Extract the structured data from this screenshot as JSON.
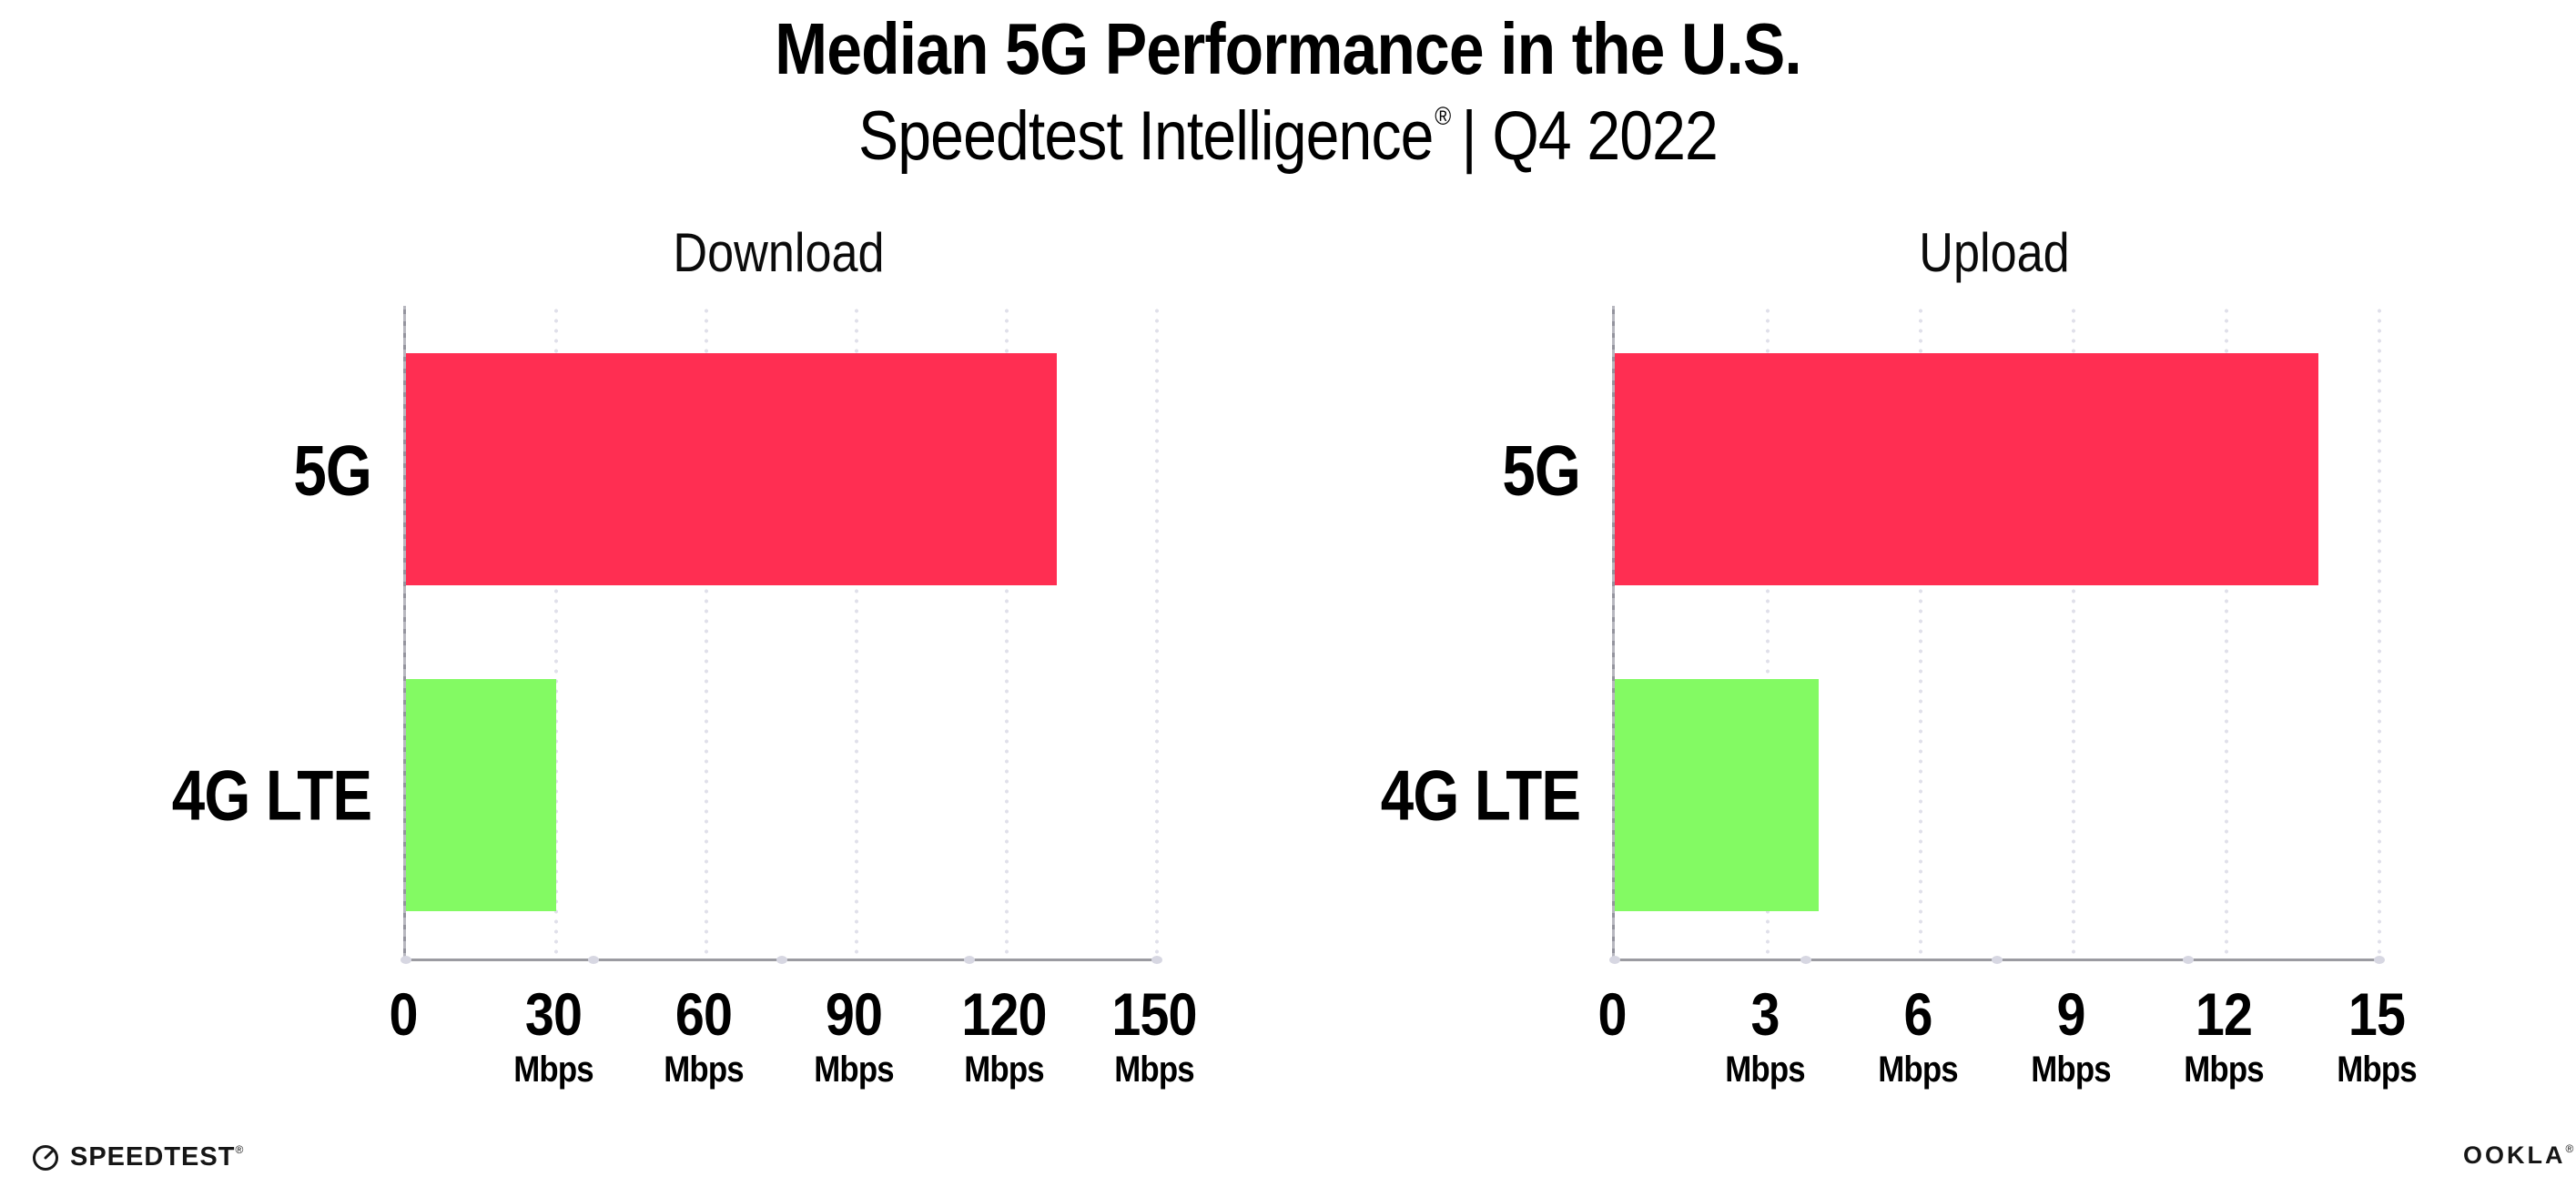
{
  "header": {
    "title": "Median 5G Performance in the U.S.",
    "subtitle_brand": "Speedtest Intelligence",
    "subtitle_reg": "®",
    "subtitle_rest": "| Q4 2022"
  },
  "chart_data": [
    {
      "type": "bar",
      "orientation": "horizontal",
      "title": "Download",
      "categories": [
        "5G",
        "4G LTE"
      ],
      "values": [
        130,
        30
      ],
      "unit": "Mbps",
      "xlim": [
        0,
        150
      ],
      "ticks": [
        0,
        30,
        60,
        90,
        120,
        150
      ],
      "bar_colors": [
        "#ff2e52",
        "#83fa63"
      ],
      "grid": "dotted-vertical-lines",
      "legend": "none"
    },
    {
      "type": "bar",
      "orientation": "horizontal",
      "title": "Upload",
      "categories": [
        "5G",
        "4G LTE"
      ],
      "values": [
        13.8,
        4
      ],
      "unit": "Mbps",
      "xlim": [
        0,
        15
      ],
      "ticks": [
        0,
        3,
        6,
        9,
        12,
        15
      ],
      "bar_colors": [
        "#ff2e52",
        "#83fa63"
      ],
      "grid": "dotted-vertical-lines",
      "legend": "none"
    }
  ],
  "footer": {
    "speedtest_text": "SPEEDTEST",
    "speedtest_mark": "®",
    "ookla_text": "OOKLA",
    "ookla_mark": "®"
  },
  "colors": {
    "bar_5g": "#ff2e52",
    "bar_4g_lte": "#83fa63",
    "gridline": "#e0e0ea",
    "axis": "#9b9ba1",
    "axis_dot": "#d7d7e2",
    "text": "#000000"
  }
}
